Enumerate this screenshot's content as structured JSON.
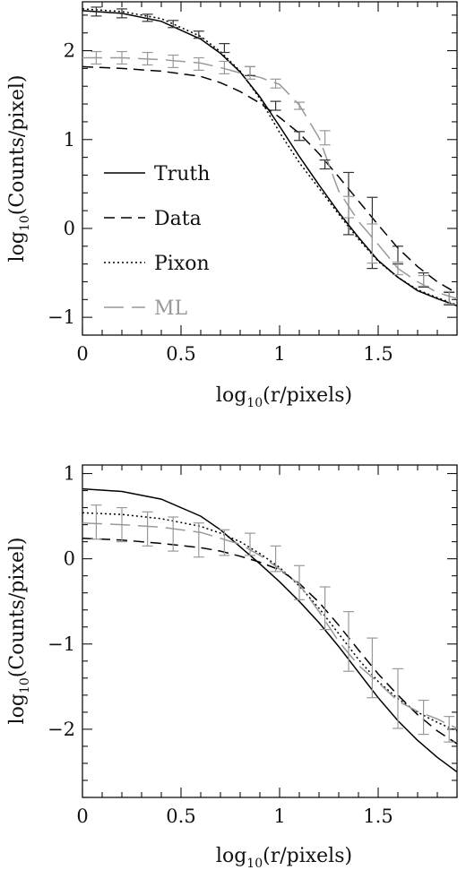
{
  "chart_data": [
    {
      "type": "line",
      "xlabel": "log10(r/pixels)",
      "ylabel": "log10(Counts/pixel)",
      "xlim": [
        0,
        1.9
      ],
      "ylim": [
        -1.2,
        2.55
      ],
      "x_ticks": [
        "0",
        "0.5",
        "1",
        "1.5"
      ],
      "y_ticks": [
        "−1",
        "0",
        "1",
        "2"
      ],
      "legend": {
        "position": "left",
        "entries": [
          "Truth",
          "Data",
          "Pixon",
          "ML"
        ]
      },
      "series": [
        {
          "name": "Truth",
          "style": "solid",
          "color": "#000000",
          "x": [
            0.0,
            0.2,
            0.4,
            0.6,
            0.7,
            0.8,
            0.9,
            1.0,
            1.1,
            1.2,
            1.3,
            1.4,
            1.5,
            1.6,
            1.7,
            1.8,
            1.9
          ],
          "y": [
            2.45,
            2.42,
            2.33,
            2.13,
            1.97,
            1.76,
            1.48,
            1.15,
            0.81,
            0.49,
            0.18,
            -0.1,
            -0.36,
            -0.55,
            -0.7,
            -0.79,
            -0.87
          ]
        },
        {
          "name": "Data",
          "style": "dashed",
          "color": "#000000",
          "x": [
            0.0,
            0.2,
            0.4,
            0.6,
            0.7,
            0.8,
            0.9,
            1.0,
            1.1,
            1.2,
            1.3,
            1.4,
            1.5,
            1.6,
            1.7,
            1.8,
            1.9
          ],
          "y": [
            1.82,
            1.8,
            1.77,
            1.71,
            1.64,
            1.54,
            1.41,
            1.25,
            1.07,
            0.84,
            0.58,
            0.31,
            0.04,
            -0.22,
            -0.43,
            -0.6,
            -0.73
          ]
        },
        {
          "name": "Pixon",
          "style": "dotted",
          "color": "#000000",
          "x": [
            0.0,
            0.2,
            0.4,
            0.6,
            0.7,
            0.8,
            0.9,
            1.0,
            1.1,
            1.2,
            1.3,
            1.4,
            1.5,
            1.6,
            1.7,
            1.8,
            1.9
          ],
          "y": [
            2.47,
            2.44,
            2.36,
            2.16,
            1.99,
            1.77,
            1.46,
            1.08,
            0.74,
            0.45,
            0.16,
            -0.12,
            -0.37,
            -0.55,
            -0.69,
            -0.78,
            -0.86
          ]
        },
        {
          "name": "ML",
          "style": "longdash",
          "color": "#999999",
          "x": [
            0.0,
            0.2,
            0.4,
            0.6,
            0.7,
            0.8,
            0.9,
            1.0,
            1.1,
            1.2,
            1.3,
            1.4,
            1.5,
            1.6,
            1.7,
            1.8,
            1.9
          ],
          "y": [
            1.92,
            1.92,
            1.9,
            1.86,
            1.81,
            1.75,
            1.7,
            1.62,
            1.39,
            1.02,
            0.42,
            0.08,
            -0.18,
            -0.45,
            -0.6,
            -0.72,
            -0.79
          ]
        }
      ],
      "errorbars": [
        {
          "color": "#333333",
          "x": [
            0.07,
            0.2,
            0.33,
            0.46,
            0.59,
            0.72,
            0.85,
            0.98,
            1.1,
            1.23,
            1.35,
            1.47,
            1.6,
            1.73,
            1.86
          ],
          "y": [
            2.44,
            2.42,
            2.37,
            2.3,
            2.18,
            2.03,
            1.77,
            1.38,
            1.04,
            0.72,
            0.28,
            -0.05,
            -0.3,
            -0.58,
            -0.79
          ],
          "err": [
            0.05,
            0.05,
            0.04,
            0.04,
            0.04,
            0.05,
            0.05,
            0.05,
            0.05,
            0.05,
            0.35,
            0.4,
            0.1,
            0.08,
            0.07
          ]
        },
        {
          "color": "#999999",
          "x": [
            0.07,
            0.2,
            0.33,
            0.46,
            0.59,
            0.72,
            0.85,
            0.98,
            1.1,
            1.23,
            1.35,
            1.47,
            1.6,
            1.73,
            1.86
          ],
          "y": [
            1.92,
            1.92,
            1.91,
            1.88,
            1.85,
            1.81,
            1.75,
            1.63,
            1.38,
            1.02,
            0.24,
            -0.17,
            -0.45,
            -0.59,
            -0.78
          ],
          "err": [
            0.07,
            0.07,
            0.07,
            0.07,
            0.07,
            0.07,
            0.07,
            0.05,
            0.04,
            0.08,
            0.12,
            0.22,
            0.07,
            0.06,
            0.07
          ]
        }
      ]
    },
    {
      "type": "line",
      "xlabel": "log10(r/pixels)",
      "ylabel": "log10(Counts/pixel)",
      "xlim": [
        0,
        1.9
      ],
      "ylim": [
        -2.8,
        1.1
      ],
      "x_ticks": [
        "0",
        "0.5",
        "1",
        "1.5"
      ],
      "y_ticks": [
        "−2",
        "−1",
        "0",
        "1"
      ],
      "series": [
        {
          "name": "Truth",
          "style": "solid",
          "color": "#000000",
          "x": [
            0.0,
            0.2,
            0.4,
            0.6,
            0.7,
            0.8,
            0.9,
            1.0,
            1.1,
            1.2,
            1.3,
            1.4,
            1.5,
            1.6,
            1.7,
            1.8,
            1.9
          ],
          "y": [
            0.82,
            0.79,
            0.7,
            0.5,
            0.34,
            0.14,
            -0.06,
            -0.27,
            -0.5,
            -0.75,
            -1.03,
            -1.33,
            -1.63,
            -1.9,
            -2.13,
            -2.33,
            -2.5
          ]
        },
        {
          "name": "Data",
          "style": "dashed",
          "color": "#000000",
          "x": [
            0.0,
            0.2,
            0.4,
            0.6,
            0.7,
            0.8,
            0.9,
            1.0,
            1.1,
            1.2,
            1.3,
            1.4,
            1.5,
            1.6,
            1.7,
            1.8,
            1.9
          ],
          "y": [
            0.24,
            0.22,
            0.18,
            0.13,
            0.09,
            0.03,
            -0.04,
            -0.13,
            -0.29,
            -0.51,
            -0.78,
            -1.07,
            -1.35,
            -1.6,
            -1.83,
            -2.02,
            -2.17
          ]
        },
        {
          "name": "Pixon",
          "style": "dotted",
          "color": "#000000",
          "x": [
            0.0,
            0.2,
            0.4,
            0.6,
            0.7,
            0.8,
            0.9,
            1.0,
            1.1,
            1.2,
            1.3,
            1.4,
            1.5,
            1.6,
            1.7,
            1.8,
            1.9
          ],
          "y": [
            0.54,
            0.52,
            0.47,
            0.38,
            0.3,
            0.2,
            0.06,
            -0.1,
            -0.32,
            -0.58,
            -0.88,
            -1.18,
            -1.44,
            -1.64,
            -1.8,
            -1.92,
            -2.02
          ]
        },
        {
          "name": "ML",
          "style": "longdash",
          "color": "#999999",
          "x": [
            0.0,
            0.2,
            0.4,
            0.6,
            0.7,
            0.8,
            0.9,
            1.0,
            1.1,
            1.2,
            1.3,
            1.4,
            1.5,
            1.6,
            1.7,
            1.8,
            1.9
          ],
          "y": [
            0.42,
            0.4,
            0.37,
            0.31,
            0.24,
            0.17,
            0.04,
            -0.12,
            -0.3,
            -0.62,
            -0.97,
            -1.25,
            -1.45,
            -1.67,
            -1.79,
            -1.88,
            -1.99
          ]
        }
      ],
      "errorbars": [
        {
          "color": "#999999",
          "x": [
            0.07,
            0.2,
            0.33,
            0.46,
            0.59,
            0.72,
            0.85,
            0.98,
            1.1,
            1.23,
            1.35,
            1.47,
            1.6,
            1.73,
            1.86
          ],
          "y": [
            0.43,
            0.4,
            0.35,
            0.29,
            0.22,
            0.19,
            0.17,
            0.0,
            -0.28,
            -0.58,
            -0.97,
            -1.28,
            -1.64,
            -1.86,
            -2.0
          ],
          "err": [
            0.2,
            0.2,
            0.2,
            0.2,
            0.2,
            0.15,
            0.13,
            0.15,
            0.2,
            0.25,
            0.35,
            0.35,
            0.35,
            0.2,
            0.15
          ]
        }
      ]
    }
  ]
}
